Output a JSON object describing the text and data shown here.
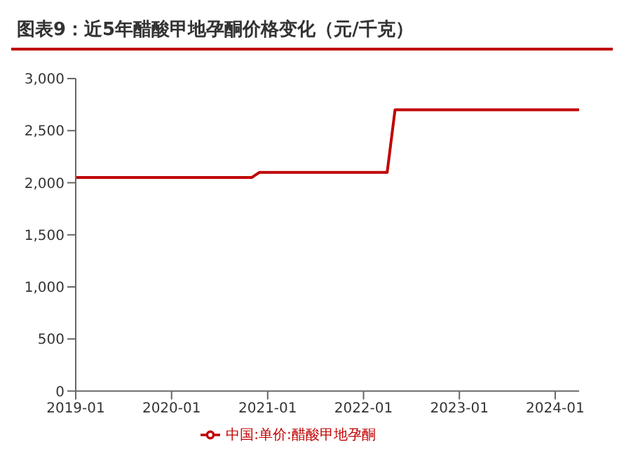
{
  "chart_data": {
    "type": "line",
    "title": "图表9：近5年醋酸甲地孕酮价格变化（元/千克）",
    "x": [
      "2019-01",
      "2020-11",
      "2020-12",
      "2022-04",
      "2022-05",
      "2024-04"
    ],
    "series": [
      {
        "name": "中国:单价:醋酸甲地孕酮",
        "color": "#c00000",
        "values": [
          2050,
          2050,
          2100,
          2100,
          2700,
          2700
        ]
      }
    ],
    "xlim": [
      "2019-01",
      "2024-04"
    ],
    "xticks": [
      "2019-01",
      "2020-01",
      "2021-01",
      "2022-01",
      "2023-01",
      "2024-01"
    ],
    "ylim": [
      0,
      3000
    ],
    "yticks": [
      0,
      {
        "value": 500,
        "label": "500"
      },
      {
        "value": 1000,
        "label": "1,000"
      },
      {
        "value": 1500,
        "label": "1,500"
      },
      {
        "value": 2000,
        "label": "2,000"
      },
      {
        "value": 2500,
        "label": "2,500"
      },
      {
        "value": 3000,
        "label": "3,000"
      }
    ],
    "grid": false,
    "legend": "bottom",
    "marker": "none",
    "line_style": "solid"
  }
}
